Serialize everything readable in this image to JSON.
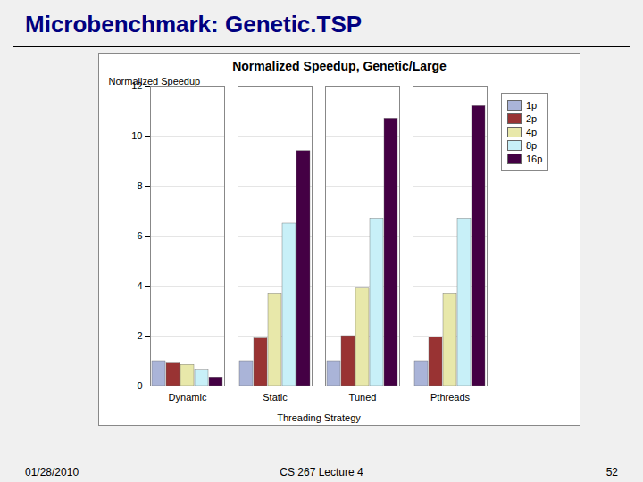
{
  "chart_data": {
    "type": "bar",
    "title": "Microbenchmark: Genetic.TSP",
    "subtitle": "Normalized Speedup, Genetic/Large",
    "xlabel": "Threading Strategy",
    "ylabel": "Normalized Speedup",
    "categories": [
      "Dynamic",
      "Static",
      "Tuned",
      "Pthreads"
    ],
    "series": [
      {
        "name": "1p",
        "color": "#aab4d8",
        "values": [
          1.0,
          1.0,
          1.0,
          1.0
        ]
      },
      {
        "name": "2p",
        "color": "#993333",
        "values": [
          0.9,
          1.9,
          2.0,
          1.95
        ]
      },
      {
        "name": "4p",
        "color": "#e8e8aa",
        "values": [
          0.85,
          3.7,
          3.9,
          3.7
        ]
      },
      {
        "name": "8p",
        "color": "#c8f0f8",
        "values": [
          0.65,
          6.5,
          6.7,
          6.7
        ]
      },
      {
        "name": "16p",
        "color": "#440044",
        "values": [
          0.35,
          9.4,
          10.7,
          11.2
        ]
      }
    ],
    "ylim": [
      0,
      12
    ],
    "yticks": [
      0,
      2,
      4,
      6,
      8,
      10,
      12
    ],
    "grid": true,
    "legend": "right",
    "annotations": [
      "01/28/2010",
      "CS 267 Lecture 4",
      "52"
    ]
  }
}
